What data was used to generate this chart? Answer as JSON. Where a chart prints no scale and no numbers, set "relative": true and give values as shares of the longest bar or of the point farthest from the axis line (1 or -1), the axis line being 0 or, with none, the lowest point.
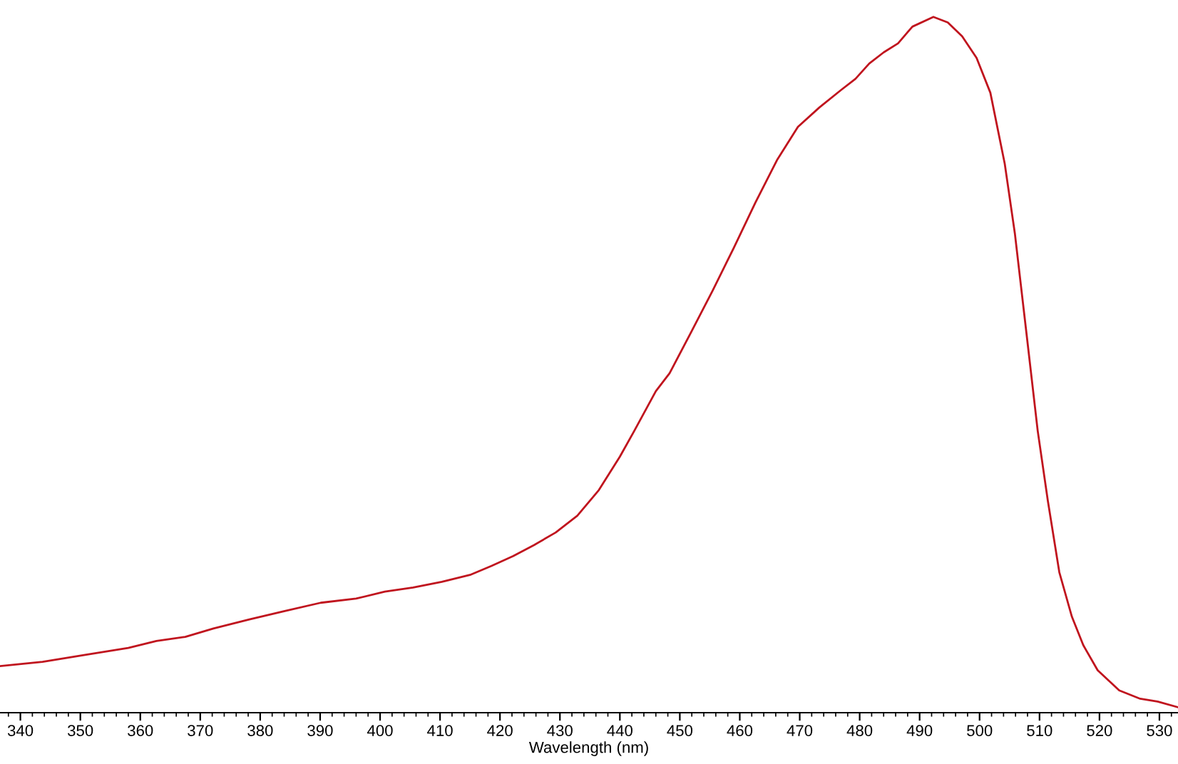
{
  "chart_data": {
    "type": "line",
    "relative": true,
    "xlabel": "Wavelength (nm)",
    "xlim": [
      336.6,
      533.1
    ],
    "xticks": [
      340,
      350,
      360,
      370,
      380,
      390,
      400,
      410,
      420,
      430,
      440,
      450,
      460,
      470,
      480,
      490,
      500,
      510,
      520,
      530
    ],
    "grid": false,
    "legend": false,
    "marker": "none",
    "line_style": "solid",
    "series": [
      {
        "color": "#c0141e",
        "x": [
          336.6,
          343.7,
          350.8,
          358.0,
          362.7,
          367.5,
          372.2,
          378.2,
          384.1,
          390.1,
          396.0,
          400.8,
          405.5,
          410.3,
          415.0,
          418.6,
          422.2,
          425.7,
          429.3,
          432.9,
          436.5,
          440.0,
          442.4,
          446.0,
          448.3,
          451.9,
          455.5,
          459.0,
          462.6,
          466.2,
          469.7,
          473.3,
          476.9,
          479.3,
          481.6,
          484.0,
          486.4,
          488.8,
          492.3,
          494.7,
          497.1,
          499.5,
          501.8,
          504.2,
          505.9,
          507.8,
          509.7,
          511.4,
          513.3,
          515.4,
          517.3,
          519.7,
          523.3,
          526.8,
          529.7,
          533.0
        ],
        "values": [
          0.067,
          0.073,
          0.083,
          0.093,
          0.103,
          0.109,
          0.121,
          0.134,
          0.146,
          0.158,
          0.164,
          0.174,
          0.18,
          0.188,
          0.198,
          0.211,
          0.225,
          0.241,
          0.259,
          0.283,
          0.32,
          0.368,
          0.405,
          0.462,
          0.488,
          0.547,
          0.607,
          0.668,
          0.733,
          0.794,
          0.842,
          0.87,
          0.895,
          0.911,
          0.933,
          0.949,
          0.962,
          0.986,
          1,
          0.992,
          0.972,
          0.941,
          0.891,
          0.789,
          0.688,
          0.547,
          0.405,
          0.304,
          0.202,
          0.138,
          0.097,
          0.061,
          0.032,
          0.02,
          0.016,
          0.008
        ]
      }
    ]
  }
}
